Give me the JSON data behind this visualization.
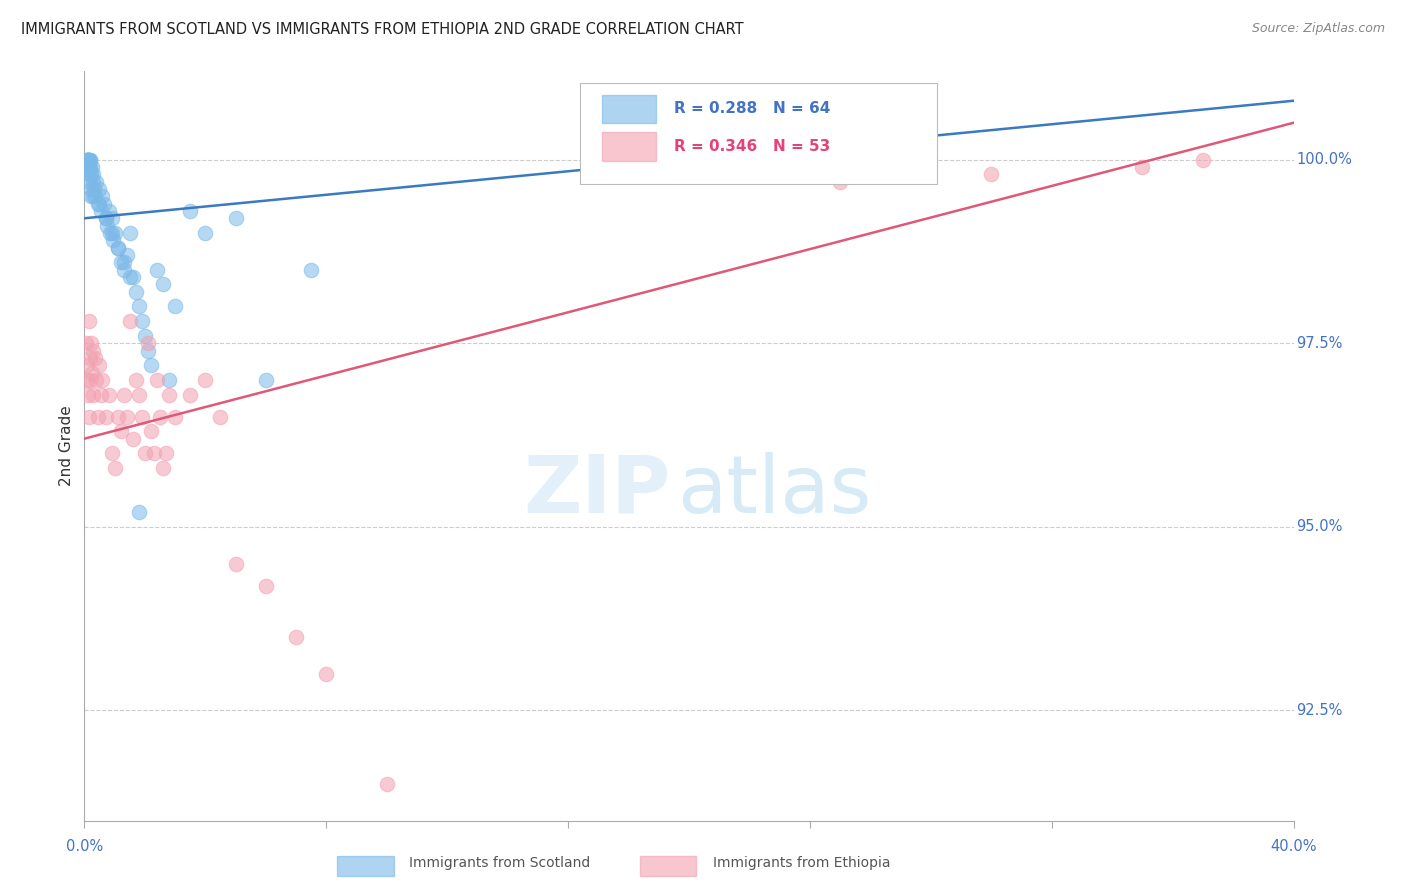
{
  "title": "IMMIGRANTS FROM SCOTLAND VS IMMIGRANTS FROM ETHIOPIA 2ND GRADE CORRELATION CHART",
  "source": "Source: ZipAtlas.com",
  "ylabel": "2nd Grade",
  "xmin": 0.0,
  "xmax": 40.0,
  "ymin": 91.0,
  "ymax": 101.2,
  "scotland_R": 0.288,
  "scotland_N": 64,
  "ethiopia_R": 0.346,
  "ethiopia_N": 53,
  "scotland_color": "#7ab8e8",
  "ethiopia_color": "#f2a0b0",
  "scotland_line_color": "#3a7abf",
  "ethiopia_line_color": "#e05878",
  "background_color": "#ffffff",
  "grid_color": "#cccccc",
  "title_color": "#222222",
  "axis_label_color": "#4472c4",
  "legend_R_color_scotland": "#4472c4",
  "legend_R_color_ethiopia": "#e8407a",
  "ytick_positions": [
    92.5,
    95.0,
    97.5,
    100.0
  ],
  "scotland_line_x0": 0.0,
  "scotland_line_x1": 40.0,
  "scotland_line_y0": 99.2,
  "scotland_line_y1": 100.8,
  "ethiopia_line_x0": 0.0,
  "ethiopia_line_x1": 40.0,
  "ethiopia_line_y0": 96.2,
  "ethiopia_line_y1": 100.5,
  "scot_x": [
    0.05,
    0.08,
    0.09,
    0.1,
    0.11,
    0.12,
    0.13,
    0.14,
    0.15,
    0.16,
    0.17,
    0.18,
    0.19,
    0.2,
    0.21,
    0.22,
    0.23,
    0.25,
    0.27,
    0.3,
    0.32,
    0.35,
    0.4,
    0.45,
    0.5,
    0.55,
    0.6,
    0.65,
    0.7,
    0.75,
    0.8,
    0.85,
    0.9,
    0.95,
    1.0,
    1.1,
    1.2,
    1.3,
    1.4,
    1.5,
    1.6,
    1.7,
    1.8,
    1.9,
    2.0,
    2.1,
    2.2,
    2.4,
    2.6,
    2.8,
    3.0,
    3.5,
    4.0,
    5.0,
    6.0,
    7.5,
    0.3,
    0.5,
    0.7,
    0.9,
    1.1,
    1.3,
    1.5,
    1.8
  ],
  "scot_y": [
    99.9,
    100.0,
    100.0,
    100.0,
    100.0,
    100.0,
    100.0,
    100.0,
    99.9,
    99.8,
    99.7,
    99.9,
    100.0,
    100.0,
    99.8,
    99.6,
    99.5,
    99.9,
    99.7,
    99.8,
    99.6,
    99.5,
    99.7,
    99.4,
    99.6,
    99.3,
    99.5,
    99.4,
    99.2,
    99.1,
    99.3,
    99.0,
    99.2,
    98.9,
    99.0,
    98.8,
    98.6,
    98.5,
    98.7,
    99.0,
    98.4,
    98.2,
    98.0,
    97.8,
    97.6,
    97.4,
    97.2,
    98.5,
    98.3,
    97.0,
    98.0,
    99.3,
    99.0,
    99.2,
    97.0,
    98.5,
    99.5,
    99.4,
    99.2,
    99.0,
    98.8,
    98.6,
    98.4,
    95.2
  ],
  "eth_x": [
    0.05,
    0.08,
    0.1,
    0.12,
    0.14,
    0.16,
    0.18,
    0.2,
    0.22,
    0.25,
    0.28,
    0.3,
    0.35,
    0.4,
    0.45,
    0.5,
    0.55,
    0.6,
    0.7,
    0.8,
    0.9,
    1.0,
    1.1,
    1.2,
    1.3,
    1.4,
    1.5,
    1.6,
    1.7,
    1.8,
    1.9,
    2.0,
    2.1,
    2.2,
    2.3,
    2.4,
    2.5,
    2.6,
    2.7,
    2.8,
    3.0,
    3.5,
    4.0,
    4.5,
    5.0,
    6.0,
    7.0,
    8.0,
    10.0,
    25.0,
    30.0,
    35.0,
    37.0
  ],
  "eth_y": [
    97.5,
    97.2,
    97.0,
    96.8,
    96.5,
    97.8,
    97.3,
    97.0,
    97.5,
    97.1,
    97.4,
    96.8,
    97.3,
    97.0,
    96.5,
    97.2,
    96.8,
    97.0,
    96.5,
    96.8,
    96.0,
    95.8,
    96.5,
    96.3,
    96.8,
    96.5,
    97.8,
    96.2,
    97.0,
    96.8,
    96.5,
    96.0,
    97.5,
    96.3,
    96.0,
    97.0,
    96.5,
    95.8,
    96.0,
    96.8,
    96.5,
    96.8,
    97.0,
    96.5,
    94.5,
    94.2,
    93.5,
    93.0,
    91.5,
    99.7,
    99.8,
    99.9,
    100.0
  ]
}
